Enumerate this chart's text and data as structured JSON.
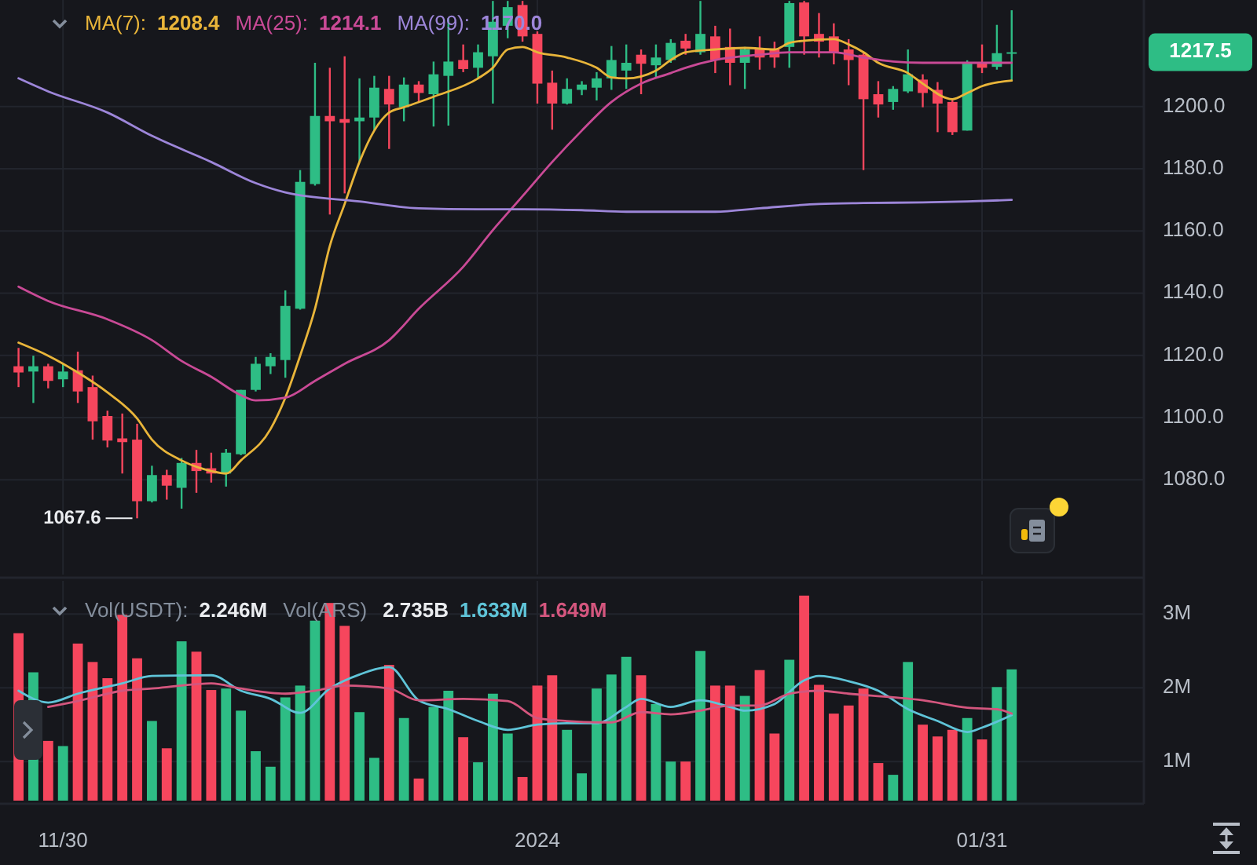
{
  "chart_data": [
    {
      "type": "candlestick",
      "grid": true,
      "tick_labels": "y",
      "xlim": [
        "2023-11-25T18:00",
        "2024-02-10T22:00"
      ],
      "xticks": [
        {
          "value": "2023-11-30",
          "label": null
        },
        {
          "value": "2024-01-01",
          "label": null
        },
        {
          "value": "2024-01-31",
          "label": null
        }
      ],
      "ylim": [
        1049.5,
        1234.3
      ],
      "yticks": [
        {
          "value": 1080,
          "label": "1080.0"
        },
        {
          "value": 1100,
          "label": "1100.0"
        },
        {
          "value": 1120,
          "label": "1120.0"
        },
        {
          "value": 1140,
          "label": "1140.0"
        },
        {
          "value": 1160,
          "label": "1160.0"
        },
        {
          "value": 1180,
          "label": "1180.0"
        },
        {
          "value": 1200,
          "label": "1200.0"
        }
      ],
      "x": [
        "2023-11-27",
        "2023-11-28",
        "2023-11-29",
        "2023-11-30",
        "2023-12-01",
        "2023-12-02",
        "2023-12-03",
        "2023-12-04",
        "2023-12-05",
        "2023-12-06",
        "2023-12-07",
        "2023-12-08",
        "2023-12-09",
        "2023-12-10",
        "2023-12-11",
        "2023-12-12",
        "2023-12-13",
        "2023-12-14",
        "2023-12-15",
        "2023-12-16",
        "2023-12-17",
        "2023-12-18",
        "2023-12-19",
        "2023-12-20",
        "2023-12-21",
        "2023-12-22",
        "2023-12-23",
        "2023-12-24",
        "2023-12-25",
        "2023-12-26",
        "2023-12-27",
        "2023-12-28",
        "2023-12-29",
        "2023-12-30",
        "2023-12-31",
        "2024-01-01",
        "2024-01-02",
        "2024-01-03",
        "2024-01-04",
        "2024-01-05",
        "2024-01-06",
        "2024-01-07",
        "2024-01-08",
        "2024-01-09",
        "2024-01-10",
        "2024-01-11",
        "2024-01-12",
        "2024-01-13",
        "2024-01-14",
        "2024-01-15",
        "2024-01-16",
        "2024-01-17",
        "2024-01-18",
        "2024-01-19",
        "2024-01-20",
        "2024-01-21",
        "2024-01-22",
        "2024-01-23",
        "2024-01-24",
        "2024-01-25",
        "2024-01-26",
        "2024-01-27",
        "2024-01-28",
        "2024-01-29",
        "2024-01-30",
        "2024-01-31",
        "2024-02-01",
        "2024-02-02"
      ],
      "ohlc": [
        [
          1116.5,
          1122.4,
          1109.8,
          1114.5
        ],
        [
          1114.8,
          1119.9,
          1104.7,
          1116.5
        ],
        [
          1116.5,
          1117.3,
          1109.4,
          1111.8
        ],
        [
          1112.3,
          1117.3,
          1109.8,
          1114.8
        ],
        [
          1115.2,
          1121.2,
          1104.7,
          1108.4
        ],
        [
          1109.8,
          1113.5,
          1092.9,
          1098.8
        ],
        [
          1100.5,
          1102.2,
          1090.4,
          1092.6
        ],
        [
          1093.3,
          1101.3,
          1082.0,
          1092.1
        ],
        [
          1092.9,
          1098.0,
          1067.6,
          1073.1
        ],
        [
          1073.1,
          1084.5,
          1072.7,
          1081.5
        ],
        [
          1081.5,
          1083.2,
          1073.6,
          1078.1
        ],
        [
          1077.4,
          1087.0,
          1070.7,
          1085.4
        ],
        [
          1085.4,
          1089.6,
          1075.8,
          1082.8
        ],
        [
          1083.7,
          1088.7,
          1079.1,
          1082.0
        ],
        [
          1082.0,
          1089.9,
          1077.8,
          1088.7
        ],
        [
          1088.2,
          1108.9,
          1087.9,
          1108.9
        ],
        [
          1108.9,
          1119.5,
          1108.4,
          1117.3
        ],
        [
          1116.5,
          1120.7,
          1114.0,
          1119.5
        ],
        [
          1118.5,
          1140.9,
          1112.8,
          1135.9
        ],
        [
          1135.0,
          1179.6,
          1134.7,
          1175.8
        ],
        [
          1175.1,
          1214.1,
          1174.6,
          1197.0
        ],
        [
          1197.0,
          1212.5,
          1165.3,
          1195.3
        ],
        [
          1196.0,
          1216.2,
          1172.1,
          1194.8
        ],
        [
          1195.3,
          1209.1,
          1182.2,
          1196.5
        ],
        [
          1196.5,
          1209.9,
          1192.3,
          1206.1
        ],
        [
          1205.7,
          1209.9,
          1186.4,
          1200.7
        ],
        [
          1199.8,
          1209.4,
          1195.3,
          1207.1
        ],
        [
          1207.1,
          1208.2,
          1201.5,
          1204.4
        ],
        [
          1204.0,
          1214.5,
          1193.6,
          1210.4
        ],
        [
          1209.9,
          1228.5,
          1193.9,
          1214.5
        ],
        [
          1215.0,
          1220.0,
          1211.1,
          1212.1
        ],
        [
          1212.5,
          1220.0,
          1209.1,
          1217.5
        ],
        [
          1216.2,
          1234.0,
          1201.0,
          1227.3
        ],
        [
          1226.0,
          1234.0,
          1222.0,
          1232.0
        ],
        [
          1232.7,
          1234.0,
          1220.9,
          1222.6
        ],
        [
          1223.4,
          1224.2,
          1201.0,
          1207.4
        ],
        [
          1207.7,
          1211.6,
          1192.6,
          1201.0
        ],
        [
          1201.0,
          1209.1,
          1200.7,
          1205.7
        ],
        [
          1205.4,
          1208.2,
          1203.7,
          1207.1
        ],
        [
          1206.1,
          1211.1,
          1202.0,
          1209.1
        ],
        [
          1209.1,
          1219.5,
          1205.4,
          1215.0
        ],
        [
          1211.6,
          1220.0,
          1205.7,
          1214.1
        ],
        [
          1216.7,
          1218.4,
          1204.0,
          1213.8
        ],
        [
          1213.3,
          1220.0,
          1209.1,
          1215.8
        ],
        [
          1215.0,
          1221.7,
          1214.1,
          1220.5
        ],
        [
          1221.2,
          1223.4,
          1216.7,
          1218.7
        ],
        [
          1217.5,
          1234.0,
          1216.7,
          1223.4
        ],
        [
          1222.6,
          1226.0,
          1210.8,
          1215.0
        ],
        [
          1219.2,
          1225.1,
          1206.9,
          1214.1
        ],
        [
          1214.1,
          1219.2,
          1205.7,
          1218.4
        ],
        [
          1218.4,
          1222.6,
          1211.9,
          1215.8
        ],
        [
          1218.4,
          1220.9,
          1212.5,
          1215.8
        ],
        [
          1219.2,
          1234.0,
          1212.5,
          1233.3
        ],
        [
          1233.5,
          1234.0,
          1216.7,
          1222.6
        ],
        [
          1223.4,
          1230.1,
          1215.8,
          1220.9
        ],
        [
          1222.6,
          1226.8,
          1213.6,
          1217.5
        ],
        [
          1218.4,
          1221.7,
          1206.9,
          1215.0
        ],
        [
          1216.7,
          1217.5,
          1179.6,
          1202.4
        ],
        [
          1204.0,
          1208.2,
          1196.5,
          1200.7
        ],
        [
          1201.5,
          1206.6,
          1199.0,
          1205.7
        ],
        [
          1204.9,
          1218.4,
          1204.4,
          1210.4
        ],
        [
          1208.7,
          1210.4,
          1199.8,
          1204.4
        ],
        [
          1205.4,
          1207.9,
          1191.8,
          1201.0
        ],
        [
          1201.5,
          1202.4,
          1190.9,
          1191.8
        ],
        [
          1192.3,
          1214.9,
          1192.3,
          1214.1
        ],
        [
          1214.1,
          1220.0,
          1210.8,
          1212.5
        ],
        [
          1212.8,
          1226.3,
          1211.9,
          1217.2
        ],
        [
          1217.2,
          1231.0,
          1208.2,
          1217.5
        ]
      ],
      "series": [
        {
          "name": "MA(7):",
          "type": "line",
          "color": "#e9b53a",
          "x": [
            "2023-11-27",
            "2023-11-29",
            "2023-12-01",
            "2023-12-03",
            "2023-12-05",
            "2023-12-06",
            "2023-12-08",
            "2023-12-10",
            "2023-12-11",
            "2023-12-12",
            "2023-12-14",
            "2023-12-15",
            "2023-12-16",
            "2023-12-17",
            "2023-12-18",
            "2023-12-19",
            "2023-12-20",
            "2023-12-21",
            "2023-12-22",
            "2023-12-23",
            "2023-12-25",
            "2023-12-28",
            "2023-12-29",
            "2023-12-30",
            "2023-12-31",
            "2024-01-01",
            "2024-01-03",
            "2024-01-05",
            "2024-01-06",
            "2024-01-07",
            "2024-01-09",
            "2024-01-10",
            "2024-01-11",
            "2024-01-13",
            "2024-01-15",
            "2024-01-17",
            "2024-01-18",
            "2024-01-19",
            "2024-01-21",
            "2024-01-22",
            "2024-01-23",
            "2024-01-24",
            "2024-01-26",
            "2024-01-27",
            "2024-01-29",
            "2024-01-30",
            "2024-01-31",
            "2024-02-02"
          ],
          "values": [
            1124.1,
            1119.9,
            1114.5,
            1108.1,
            1099.7,
            1092.9,
            1086.2,
            1082.8,
            1082.0,
            1086.2,
            1096.3,
            1106.4,
            1119.9,
            1135.0,
            1155.2,
            1168.7,
            1182.2,
            1192.3,
            1198.1,
            1199.8,
            1203.2,
            1209.1,
            1212.5,
            1218.4,
            1219.2,
            1217.5,
            1215.8,
            1212.5,
            1209.4,
            1209.1,
            1211.6,
            1215.0,
            1217.5,
            1218.4,
            1218.9,
            1218.4,
            1220.5,
            1221.2,
            1221.7,
            1220.0,
            1217.5,
            1214.1,
            1210.8,
            1207.4,
            1202.4,
            1204.4,
            1206.6,
            1208.4
          ]
        },
        {
          "name": "MA(25):",
          "type": "line",
          "color": "#c94a96",
          "x": [
            "2023-11-27",
            "2023-11-29",
            "2023-12-03",
            "2023-12-06",
            "2023-12-08",
            "2023-12-10",
            "2023-12-12",
            "2023-12-13",
            "2023-12-15",
            "2023-12-17",
            "2023-12-19",
            "2023-12-22",
            "2023-12-24",
            "2023-12-27",
            "2023-12-29",
            "2023-12-31",
            "2024-01-02",
            "2024-01-04",
            "2024-01-06",
            "2024-01-08",
            "2024-01-10",
            "2024-01-11",
            "2024-01-13",
            "2024-01-16",
            "2024-01-18",
            "2024-01-21",
            "2024-01-23",
            "2024-01-25",
            "2024-01-27",
            "2024-01-29",
            "2024-01-31",
            "2024-02-02"
          ],
          "values": [
            1142.1,
            1137.5,
            1131.6,
            1124.9,
            1118.2,
            1113.1,
            1107.2,
            1105.5,
            1106.4,
            1111.8,
            1117.3,
            1124.9,
            1135.0,
            1148.5,
            1160.3,
            1171.2,
            1182.2,
            1192.3,
            1201.5,
            1207.4,
            1210.8,
            1212.5,
            1215.0,
            1216.7,
            1217.5,
            1217.5,
            1215.8,
            1214.5,
            1214.1,
            1214.1,
            1214.1,
            1214.1
          ]
        },
        {
          "name": "MA(99):",
          "type": "line",
          "color": "#9d86d9",
          "x": [
            "2023-11-27",
            "2023-11-29",
            "2023-12-03",
            "2023-12-06",
            "2023-12-10",
            "2023-12-13",
            "2023-12-15",
            "2023-12-20",
            "2023-12-24",
            "2023-12-28",
            "2023-12-31",
            "2024-01-04",
            "2024-01-07",
            "2024-01-10",
            "2024-01-13",
            "2024-01-16",
            "2024-01-20",
            "2024-01-23",
            "2024-01-27",
            "2024-01-30",
            "2024-02-02"
          ],
          "values": [
            1209.1,
            1204.9,
            1198.1,
            1190.6,
            1182.2,
            1175.4,
            1172.4,
            1169.5,
            1167.3,
            1167.0,
            1167.0,
            1166.7,
            1166.2,
            1166.2,
            1166.2,
            1167.3,
            1168.7,
            1169.0,
            1169.2,
            1169.5,
            1170.0
          ]
        }
      ],
      "annotations": [
        "1208.4",
        "1214.1",
        "1170.0",
        {
          "text": "1067.6",
          "x": "2023-12-05",
          "y": 1067.6
        },
        "1217.5"
      ]
    },
    {
      "type": "bar",
      "grid": true,
      "xlim": [
        "2023-11-25T18:00",
        "2024-02-10T22:00"
      ],
      "xticks": [
        {
          "value": "2023-11-30",
          "label": "11/30"
        },
        {
          "value": "2024-01-01",
          "label": "2024"
        },
        {
          "value": "2024-01-31",
          "label": "01/31"
        }
      ],
      "ylim": [
        0.47,
        3.45
      ],
      "yticks": [
        {
          "value": 1,
          "label": "1M"
        },
        {
          "value": 2,
          "label": "2M"
        },
        {
          "value": 3,
          "label": "3M"
        }
      ],
      "x": [
        "2023-11-27",
        "2023-11-28",
        "2023-11-29",
        "2023-11-30",
        "2023-12-01",
        "2023-12-02",
        "2023-12-03",
        "2023-12-04",
        "2023-12-05",
        "2023-12-06",
        "2023-12-07",
        "2023-12-08",
        "2023-12-09",
        "2023-12-10",
        "2023-12-11",
        "2023-12-12",
        "2023-12-13",
        "2023-12-14",
        "2023-12-15",
        "2023-12-16",
        "2023-12-17",
        "2023-12-18",
        "2023-12-19",
        "2023-12-20",
        "2023-12-21",
        "2023-12-22",
        "2023-12-23",
        "2023-12-24",
        "2023-12-25",
        "2023-12-26",
        "2023-12-27",
        "2023-12-28",
        "2023-12-29",
        "2023-12-30",
        "2023-12-31",
        "2024-01-01",
        "2024-01-02",
        "2024-01-03",
        "2024-01-04",
        "2024-01-05",
        "2024-01-06",
        "2024-01-07",
        "2024-01-08",
        "2024-01-09",
        "2024-01-10",
        "2024-01-11",
        "2024-01-12",
        "2024-01-13",
        "2024-01-14",
        "2024-01-15",
        "2024-01-16",
        "2024-01-17",
        "2024-01-18",
        "2024-01-19",
        "2024-01-20",
        "2024-01-21",
        "2024-01-22",
        "2024-01-23",
        "2024-01-24",
        "2024-01-25",
        "2024-01-26",
        "2024-01-27",
        "2024-01-28",
        "2024-01-29",
        "2024-01-30",
        "2024-01-31",
        "2024-02-01",
        "2024-02-02"
      ],
      "series": [
        {
          "name": "Vol(USDT):",
          "values": [
            2.74,
            2.21,
            1.28,
            1.21,
            2.6,
            2.35,
            2.13,
            2.99,
            2.4,
            1.55,
            1.18,
            2.63,
            2.49,
            1.97,
            1.99,
            1.69,
            1.14,
            0.93,
            1.87,
            2.03,
            2.91,
            3.15,
            2.84,
            1.67,
            1.05,
            2.31,
            1.59,
            0.77,
            1.74,
            1.96,
            1.33,
            0.99,
            1.92,
            1.38,
            0.79,
            2.03,
            2.17,
            1.43,
            0.84,
            1.99,
            2.18,
            2.42,
            2.17,
            1.78,
            1.0,
            1.0,
            2.5,
            2.03,
            2.03,
            1.89,
            2.24,
            1.38,
            2.38,
            3.25,
            2.04,
            1.65,
            1.76,
            1.99,
            0.98,
            0.82,
            2.35,
            1.5,
            1.34,
            1.43,
            1.59,
            1.3,
            2.01,
            2.25
          ],
          "colors": [
            "#f6465d",
            "#2ebd85",
            "#f6465d",
            "#2ebd85",
            "#f6465d",
            "#f6465d",
            "#f6465d",
            "#f6465d",
            "#f6465d",
            "#2ebd85",
            "#f6465d",
            "#2ebd85",
            "#f6465d",
            "#f6465d",
            "#2ebd85",
            "#2ebd85",
            "#2ebd85",
            "#2ebd85",
            "#2ebd85",
            "#2ebd85",
            "#2ebd85",
            "#f6465d",
            "#f6465d",
            "#2ebd85",
            "#2ebd85",
            "#f6465d",
            "#2ebd85",
            "#f6465d",
            "#2ebd85",
            "#2ebd85",
            "#f6465d",
            "#2ebd85",
            "#2ebd85",
            "#2ebd85",
            "#f6465d",
            "#f6465d",
            "#f6465d",
            "#2ebd85",
            "#2ebd85",
            "#2ebd85",
            "#2ebd85",
            "#2ebd85",
            "#f6465d",
            "#2ebd85",
            "#2ebd85",
            "#f6465d",
            "#2ebd85",
            "#f6465d",
            "#f6465d",
            "#2ebd85",
            "#f6465d",
            "#f6465d",
            "#2ebd85",
            "#f6465d",
            "#f6465d",
            "#f6465d",
            "#f6465d",
            "#f6465d",
            "#f6465d",
            "#2ebd85",
            "#2ebd85",
            "#f6465d",
            "#f6465d",
            "#f6465d",
            "#2ebd85",
            "#f6465d",
            "#2ebd85",
            "#2ebd85"
          ]
        },
        {
          "type": "line",
          "color": "#5fc4d8",
          "x": [
            "2023-11-27",
            "2023-11-29",
            "2023-12-01",
            "2023-12-04",
            "2023-12-06",
            "2023-12-10",
            "2023-12-12",
            "2023-12-14",
            "2023-12-16",
            "2023-12-18",
            "2023-12-20",
            "2023-12-22",
            "2023-12-24",
            "2023-12-26",
            "2023-12-28",
            "2023-12-30",
            "2024-01-01",
            "2024-01-03",
            "2024-01-05",
            "2024-01-07",
            "2024-01-08",
            "2024-01-10",
            "2024-01-12",
            "2024-01-14",
            "2024-01-15",
            "2024-01-17",
            "2024-01-19",
            "2024-01-20",
            "2024-01-22",
            "2024-01-24",
            "2024-01-26",
            "2024-01-28",
            "2024-01-30",
            "2024-01-31",
            "2024-02-02"
          ],
          "values": [
            1.96,
            1.8,
            1.92,
            2.06,
            2.16,
            2.17,
            1.96,
            1.85,
            1.66,
            1.99,
            2.18,
            2.28,
            1.83,
            1.71,
            1.55,
            1.43,
            1.5,
            1.52,
            1.52,
            1.74,
            1.85,
            1.74,
            1.83,
            1.74,
            1.69,
            1.78,
            2.1,
            2.16,
            2.09,
            1.96,
            1.71,
            1.55,
            1.4,
            1.46,
            1.63
          ]
        },
        {
          "type": "line",
          "color": "#d4567e",
          "x": [
            "2023-11-29",
            "2023-12-01",
            "2023-12-04",
            "2023-12-06",
            "2023-12-08",
            "2023-12-10",
            "2023-12-12",
            "2023-12-15",
            "2023-12-17",
            "2023-12-19",
            "2023-12-22",
            "2023-12-24",
            "2023-12-27",
            "2023-12-30",
            "2024-01-01",
            "2024-01-03",
            "2024-01-06",
            "2024-01-08",
            "2024-01-10",
            "2024-01-12",
            "2024-01-14",
            "2024-01-16",
            "2024-01-18",
            "2024-01-20",
            "2024-01-22",
            "2024-01-25",
            "2024-01-27",
            "2024-01-30",
            "2024-02-01",
            "2024-02-02"
          ],
          "values": [
            1.74,
            1.82,
            1.96,
            1.99,
            2.03,
            2.06,
            1.99,
            1.92,
            1.96,
            2.03,
            1.99,
            1.83,
            1.85,
            1.82,
            1.59,
            1.55,
            1.53,
            1.67,
            1.64,
            1.69,
            1.76,
            1.76,
            1.92,
            1.96,
            1.92,
            1.87,
            1.83,
            1.73,
            1.71,
            1.65
          ]
        }
      ],
      "annotations": [
        "2.246M",
        "1.633M",
        "1.649M",
        "Vol(ARS)",
        "2.735B"
      ]
    }
  ]
}
